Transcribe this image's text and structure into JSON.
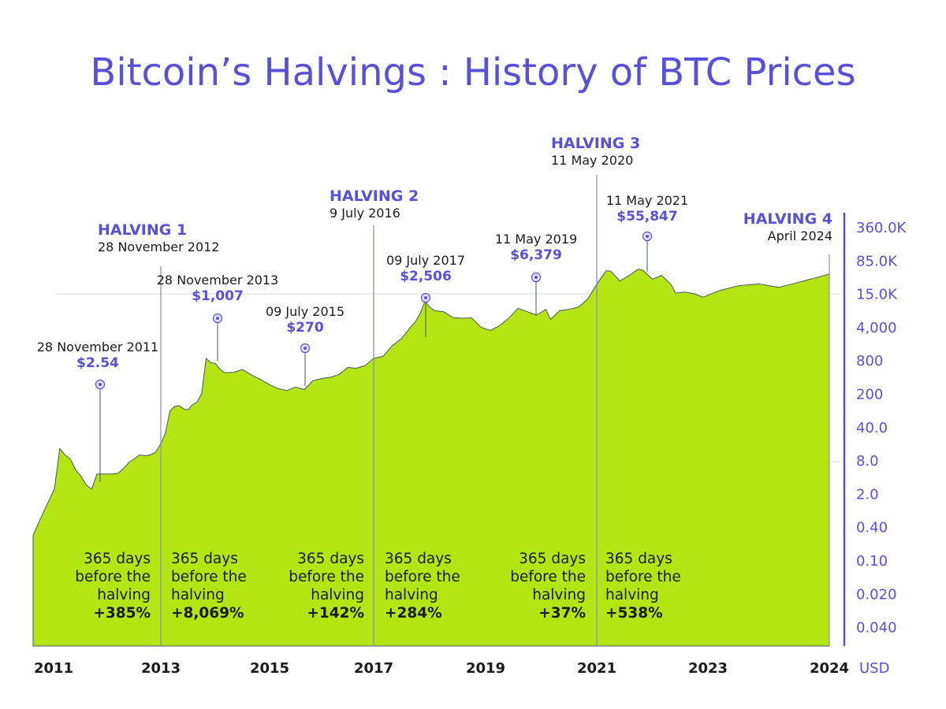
{
  "colors": {
    "accent": "#5850d8",
    "area_fill": "#b2e512",
    "area_stroke": "#4a5566",
    "text": "#1b1b1b",
    "halving_line": "#8a86c8"
  },
  "chart_data": {
    "type": "area",
    "title": "Bitcoin’s Halvings : History of BTC Prices",
    "y_unit_label": "USD",
    "y_scale": "log",
    "y_ticks": [
      "360.0K",
      "85.0K",
      "15.0K",
      "4,000",
      "800",
      "200",
      "40.0",
      "8.0",
      "2.0",
      "0.40",
      "0.10",
      "0.020",
      "0.040"
    ],
    "x_ticks": [
      "2011",
      "2013",
      "2015",
      "2017",
      "2019",
      "2021",
      "2023",
      "2024"
    ],
    "halvings": [
      {
        "title": "HALVING 1",
        "date": "28 November 2012"
      },
      {
        "title": "HALVING 2",
        "date": "9 July 2016"
      },
      {
        "title": "HALVING 3",
        "date": "11 May 2020"
      },
      {
        "title": "HALVING 4",
        "date": "April 2024"
      }
    ],
    "price_markers": [
      {
        "date": "28 November 2011",
        "price": "$2.54"
      },
      {
        "date": "28 November 2013",
        "price": "$1,007"
      },
      {
        "date": "09 July 2015",
        "price": "$270"
      },
      {
        "date": "09 July 2017",
        "price": "$2,506"
      },
      {
        "date": "11 May 2019",
        "price": "$6,379"
      },
      {
        "date": "11 May 2021",
        "price": "$55,847"
      }
    ],
    "annotations": [
      {
        "lines": [
          "365 days",
          "before the",
          "halving"
        ],
        "change": "+385%"
      },
      {
        "lines": [
          "365 days",
          "before the",
          "halving"
        ],
        "change": "+8,069%"
      },
      {
        "lines": [
          "365 days",
          "before the",
          "halving"
        ],
        "change": "+142%"
      },
      {
        "lines": [
          "365 days",
          "before the",
          "halving"
        ],
        "change": "+284%"
      },
      {
        "lines": [
          "365 days",
          "before the",
          "halving"
        ],
        "change": "+37%"
      },
      {
        "lines": [
          "365 days",
          "before the",
          "halving"
        ],
        "change": "+538%"
      }
    ],
    "price_series": {
      "x": [
        "2011-01",
        "2011-03",
        "2011-05",
        "2011-06",
        "2011-07",
        "2011-08",
        "2011-09",
        "2011-10",
        "2011-11",
        "2011-12",
        "2012-01",
        "2012-02",
        "2012-03",
        "2012-04",
        "2012-05",
        "2012-06",
        "2012-07",
        "2012-08",
        "2012-09",
        "2012-10",
        "2012-11",
        "2012-12",
        "2013-01",
        "2013-02",
        "2013-03",
        "2013-04",
        "2013-05",
        "2013-06",
        "2013-07",
        "2013-08",
        "2013-09",
        "2013-10",
        "2013-11",
        "2013-12",
        "2014-01",
        "2014-02",
        "2014-03",
        "2014-05",
        "2014-07",
        "2014-09",
        "2014-11",
        "2015-01",
        "2015-03",
        "2015-05",
        "2015-07",
        "2015-09",
        "2015-11",
        "2016-01",
        "2016-03",
        "2016-05",
        "2016-07",
        "2016-09",
        "2016-11",
        "2017-01",
        "2017-03",
        "2017-05",
        "2017-07",
        "2017-09",
        "2017-10",
        "2017-11",
        "2017-12",
        "2018-01",
        "2018-02",
        "2018-04",
        "2018-06",
        "2018-08",
        "2018-10",
        "2018-12",
        "2019-02",
        "2019-04",
        "2019-06",
        "2019-08",
        "2019-10",
        "2019-12",
        "2020-02",
        "2020-03",
        "2020-05",
        "2020-07",
        "2020-09",
        "2020-11",
        "2021-01",
        "2021-03",
        "2021-04",
        "2021-06",
        "2021-08",
        "2021-10",
        "2021-11",
        "2022-01",
        "2022-03",
        "2022-05",
        "2022-06",
        "2022-08",
        "2022-10",
        "2022-12",
        "2023-02",
        "2023-04",
        "2023-06",
        "2023-08",
        "2023-10",
        "2023-12",
        "2024-02",
        "2024-03"
      ],
      "y": [
        0.3,
        0.9,
        2.5,
        16,
        12,
        10,
        6,
        4.5,
        3,
        2.5,
        5,
        5,
        5,
        5,
        5.2,
        6.5,
        8.5,
        10,
        12,
        11.5,
        12,
        13.5,
        20,
        32,
        90,
        110,
        115,
        100,
        95,
        120,
        135,
        200,
        1007,
        820,
        800,
        620,
        520,
        530,
        600,
        470,
        380,
        300,
        250,
        230,
        270,
        240,
        360,
        400,
        420,
        480,
        660,
        640,
        720,
        1000,
        1100,
        1800,
        2506,
        4300,
        5500,
        8000,
        14000,
        10500,
        9000,
        8500,
        6500,
        6300,
        6400,
        4200,
        3600,
        4500,
        6379,
        10000,
        8500,
        7300,
        9500,
        6000,
        9000,
        9500,
        10500,
        15000,
        30000,
        55847,
        55000,
        35000,
        45000,
        60000,
        57000,
        38000,
        45000,
        30000,
        20000,
        21000,
        19500,
        16600,
        22000,
        28000,
        30500,
        26000,
        33000,
        42000,
        48000,
        52000
      ]
    }
  }
}
